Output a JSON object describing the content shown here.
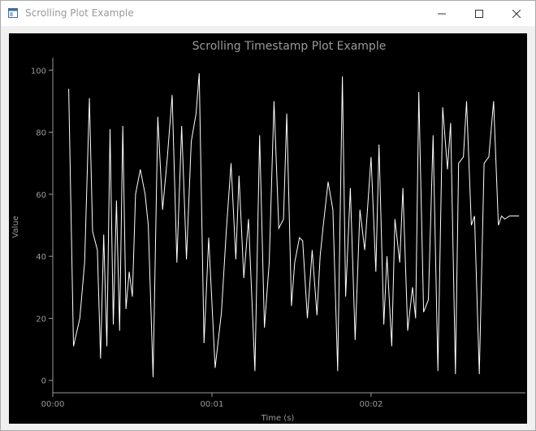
{
  "window": {
    "title": "Scrolling Plot Example",
    "icons": {
      "app": "app-window-icon",
      "minimize": "minimize-icon",
      "maximize": "maximize-icon",
      "close": "close-icon"
    }
  },
  "colors": {
    "plot_bg": "#000000",
    "line": "#ffffff",
    "axis": "#9a9a9a"
  },
  "chart_data": {
    "type": "line",
    "title": "Scrolling Timestamp Plot Example",
    "xlabel": "Time (s)",
    "ylabel": "Value",
    "xlim": [
      0,
      2.97
    ],
    "ylim": [
      -4,
      104
    ],
    "x_ticks": [
      {
        "value": 0,
        "label": "00:00"
      },
      {
        "value": 1,
        "label": "00:01"
      },
      {
        "value": 2,
        "label": "00:02"
      }
    ],
    "y_ticks": [
      0,
      20,
      40,
      60,
      80,
      100
    ],
    "grid": false,
    "legend": "none",
    "series": [
      {
        "x": [
          0.1,
          0.13,
          0.17,
          0.2,
          0.23,
          0.25,
          0.28,
          0.3,
          0.32,
          0.34,
          0.36,
          0.38,
          0.4,
          0.42,
          0.44,
          0.46,
          0.48,
          0.5,
          0.52,
          0.55,
          0.58,
          0.6,
          0.63,
          0.66,
          0.69,
          0.72,
          0.75,
          0.78,
          0.81,
          0.84,
          0.87,
          0.9,
          0.92,
          0.95,
          0.98,
          1.02,
          1.06,
          1.09,
          1.12,
          1.15,
          1.17,
          1.2,
          1.23,
          1.27,
          1.3,
          1.33,
          1.36,
          1.39,
          1.42,
          1.45,
          1.47,
          1.5,
          1.52,
          1.55,
          1.57,
          1.6,
          1.63,
          1.66,
          1.68,
          1.7,
          1.73,
          1.76,
          1.79,
          1.82,
          1.84,
          1.87,
          1.9,
          1.93,
          1.96,
          2.0,
          2.03,
          2.05,
          2.08,
          2.1,
          2.13,
          2.15,
          2.18,
          2.2,
          2.23,
          2.26,
          2.28,
          2.3,
          2.33,
          2.36,
          2.39,
          2.42,
          2.45,
          2.48,
          2.5,
          2.53,
          2.55,
          2.58,
          2.6,
          2.63,
          2.65,
          2.68,
          2.71,
          2.74,
          2.77,
          2.8,
          2.82,
          2.84,
          2.87,
          2.9,
          2.93
        ],
        "y": [
          94,
          11,
          20,
          38,
          91,
          48,
          42,
          7,
          47,
          11,
          81,
          18,
          58,
          16,
          82,
          23,
          35,
          27,
          60,
          68,
          60,
          50,
          1,
          85,
          55,
          72,
          92,
          38,
          82,
          39,
          77,
          86,
          99,
          12,
          46,
          4,
          22,
          48,
          70,
          39,
          66,
          33,
          52,
          3,
          79,
          17,
          38,
          90,
          49,
          52,
          86,
          24,
          38,
          46,
          45,
          20,
          42,
          21,
          40,
          50,
          64,
          55,
          3,
          98,
          27,
          62,
          13,
          55,
          42,
          72,
          35,
          76,
          18,
          40,
          11,
          52,
          38,
          62,
          16,
          30,
          20,
          93,
          22,
          26,
          79,
          3,
          88,
          68,
          83,
          2,
          70,
          72,
          90,
          50,
          53,
          2,
          70,
          72,
          90,
          50,
          53,
          52,
          53,
          53,
          53
        ]
      }
    ]
  }
}
